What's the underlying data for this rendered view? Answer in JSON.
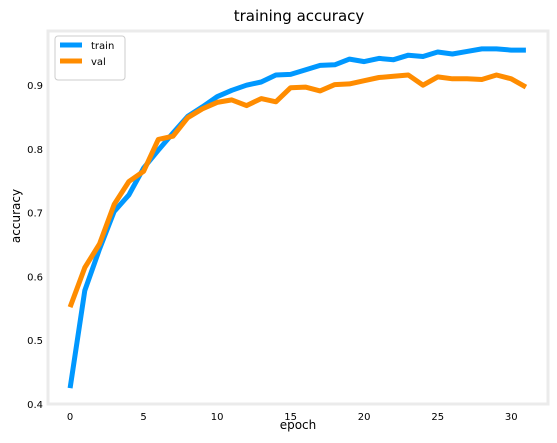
{
  "chart_data": {
    "type": "line",
    "title": "training accuracy",
    "xlabel": "epoch",
    "ylabel": "accuracy",
    "xlim": [
      -1.5,
      32.5
    ],
    "ylim": [
      0.4,
      0.985
    ],
    "xticks": [
      0,
      5,
      10,
      15,
      20,
      25,
      30
    ],
    "yticks": [
      0.4,
      0.5,
      0.6,
      0.7,
      0.8,
      0.9
    ],
    "grid": false,
    "legend": "top-left",
    "x": [
      0,
      1,
      2,
      3,
      4,
      5,
      6,
      7,
      8,
      9,
      10,
      11,
      12,
      13,
      14,
      15,
      16,
      17,
      18,
      19,
      20,
      21,
      22,
      23,
      24,
      25,
      26,
      27,
      28,
      29,
      30,
      31
    ],
    "series": [
      {
        "name": "train",
        "color": "#0098ff",
        "values": [
          0.425,
          0.578,
          0.643,
          0.702,
          0.728,
          0.77,
          0.798,
          0.825,
          0.851,
          0.866,
          0.882,
          0.892,
          0.9,
          0.905,
          0.916,
          0.917,
          0.924,
          0.931,
          0.932,
          0.941,
          0.937,
          0.942,
          0.94,
          0.947,
          0.945,
          0.952,
          0.949,
          0.953,
          0.957,
          0.957,
          0.955,
          0.955
        ]
      },
      {
        "name": "val",
        "color": "#ff8c00",
        "values": [
          0.552,
          0.614,
          0.651,
          0.713,
          0.749,
          0.765,
          0.815,
          0.82,
          0.849,
          0.863,
          0.873,
          0.877,
          0.868,
          0.879,
          0.874,
          0.896,
          0.897,
          0.891,
          0.901,
          0.902,
          0.907,
          0.912,
          0.914,
          0.916,
          0.9,
          0.913,
          0.91,
          0.91,
          0.909,
          0.916,
          0.91,
          0.897
        ]
      }
    ]
  }
}
